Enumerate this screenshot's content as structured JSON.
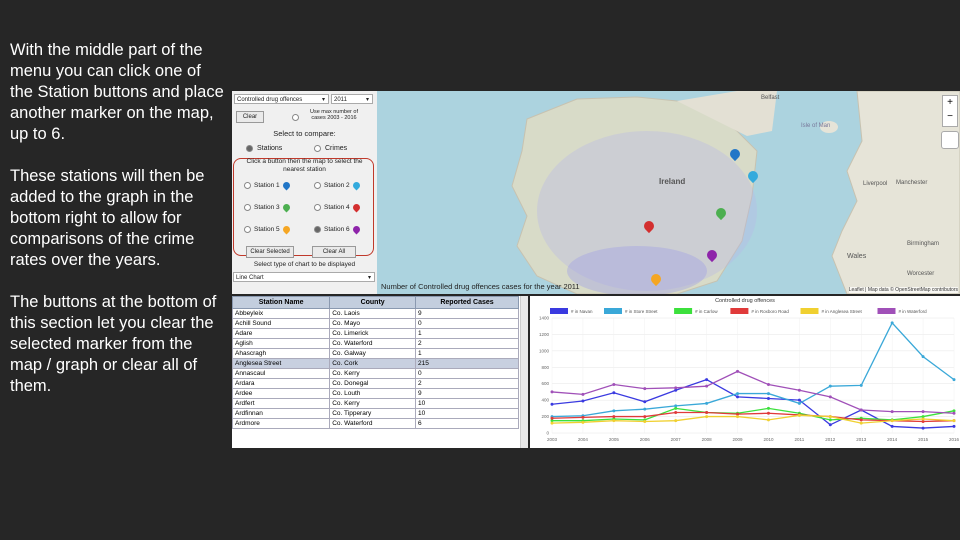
{
  "description": {
    "paragraphs": [
      "With the middle part of the menu you can click one of the Station buttons and place another marker on the map, up to 6.",
      "These stations will then be added to the graph in the bottom right to allow for comparisons of the crime rates over the years.",
      "The buttons at the bottom of this section let you clear the selected marker from the map / graph or clear all of them."
    ]
  },
  "controls": {
    "crime_select": "Controlled drug offences",
    "year_select": "2011",
    "clear_label": "Clear",
    "use_max_label": "Use max number of cases 2003 - 2016",
    "compare_label": "Select to compare:",
    "stations_option": "Stations",
    "crimes_option": "Crimes",
    "instruction": "Click a button then the map to select the nearest station",
    "stations": [
      {
        "label": "Station 1",
        "color": "#2176c7"
      },
      {
        "label": "Station 2",
        "color": "#33aadd"
      },
      {
        "label": "Station 3",
        "color": "#4caf50"
      },
      {
        "label": "Station 4",
        "color": "#d32f2f"
      },
      {
        "label": "Station 5",
        "color": "#f5a623"
      },
      {
        "label": "Station 6",
        "color": "#8e24aa"
      }
    ],
    "clear_selected_label": "Clear Selected",
    "clear_all_label": "Clear All",
    "chart_type_label": "Select type of chart to be displayed",
    "chart_type_select": "Line Chart"
  },
  "map": {
    "caption": "Number of Controlled drug offences cases for the year 2011",
    "attribution": "Leaflet | Map data © OpenStreetMap contributors",
    "zoom_in": "+",
    "zoom_out": "−",
    "places": [
      {
        "name": "Ireland",
        "bold": true
      },
      {
        "name": "Isle of Man",
        "bold": false
      },
      {
        "name": "Belfast",
        "bold": false
      },
      {
        "name": "Liverpool",
        "bold": false
      },
      {
        "name": "Manchester",
        "bold": false
      },
      {
        "name": "Wales",
        "bold": false
      },
      {
        "name": "Birmingham",
        "bold": false
      },
      {
        "name": "Worcester",
        "bold": false
      }
    ]
  },
  "table": {
    "headers": [
      "Station Name",
      "County",
      "Reported Cases"
    ],
    "rows": [
      [
        "Abbeyleix",
        "Co. Laois",
        "9"
      ],
      [
        "Achill Sound",
        "Co. Mayo",
        "0"
      ],
      [
        "Adare",
        "Co. Limerick",
        "1"
      ],
      [
        "Aglish",
        "Co. Waterford",
        "2"
      ],
      [
        "Ahascragh",
        "Co. Galway",
        "1"
      ],
      [
        "Anglesea Street",
        "Co. Cork",
        "215"
      ],
      [
        "Annascaul",
        "Co. Kerry",
        "0"
      ],
      [
        "Ardara",
        "Co. Donegal",
        "2"
      ],
      [
        "Ardee",
        "Co. Louth",
        "9"
      ],
      [
        "Ardfert",
        "Co. Kerry",
        "10"
      ],
      [
        "Ardfinnan",
        "Co. Tipperary",
        "10"
      ],
      [
        "Ardmore",
        "Co. Waterford",
        "6"
      ]
    ],
    "highlight_row": "Anglesea Street"
  },
  "chart_data": {
    "type": "line",
    "title": "Controlled drug offences",
    "x": [
      "2003",
      "2004",
      "2005",
      "2006",
      "2007",
      "2008",
      "2009",
      "2010",
      "2011",
      "2012",
      "2013",
      "2014",
      "2015",
      "2016"
    ],
    "ylim": [
      0,
      1400
    ],
    "yticks": [
      0,
      200,
      400,
      600,
      800,
      1000,
      1200,
      1400
    ],
    "legend_position": "top",
    "series": [
      {
        "name": "# in Navan",
        "color": "#3a3ae0",
        "values": [
          350,
          390,
          490,
          380,
          520,
          650,
          440,
          420,
          400,
          100,
          280,
          80,
          60,
          80
        ]
      },
      {
        "name": "# in Store Street",
        "color": "#3aa8d8",
        "values": [
          200,
          210,
          270,
          290,
          330,
          360,
          480,
          480,
          360,
          570,
          580,
          1340,
          930,
          650
        ]
      },
      {
        "name": "# in Carlow",
        "color": "#3ce03c",
        "values": [
          150,
          150,
          170,
          160,
          300,
          250,
          240,
          300,
          240,
          160,
          180,
          160,
          200,
          270
        ]
      },
      {
        "name": "# in Roxboro Road",
        "color": "#e03a3a",
        "values": [
          180,
          190,
          200,
          200,
          250,
          250,
          230,
          240,
          220,
          200,
          160,
          150,
          140,
          150
        ]
      },
      {
        "name": "# in Anglesea Street",
        "color": "#f0d030",
        "values": [
          120,
          130,
          150,
          140,
          150,
          200,
          200,
          160,
          215,
          200,
          120,
          150,
          170,
          150
        ]
      },
      {
        "name": "# in Waterford",
        "color": "#a050b8",
        "values": [
          500,
          470,
          590,
          540,
          550,
          570,
          750,
          590,
          520,
          440,
          280,
          260,
          260,
          240
        ]
      }
    ]
  }
}
